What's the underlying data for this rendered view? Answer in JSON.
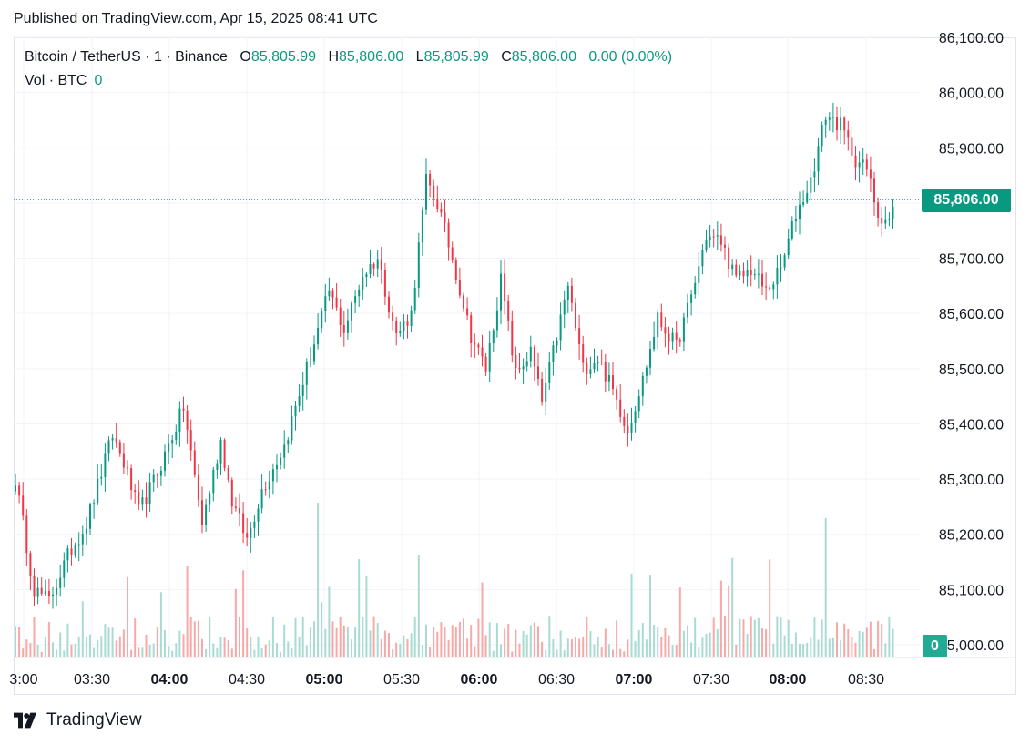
{
  "header": {
    "published": "Published on TradingView.com, Apr 15, 2025 08:41 UTC"
  },
  "legend": {
    "symbol": "Bitcoin / TetherUS · 1 · Binance",
    "o_label": "O",
    "o_value": "85,805.99",
    "h_label": "H",
    "h_value": "85,806.00",
    "l_label": "L",
    "l_value": "85,805.99",
    "c_label": "C",
    "c_value": "85,806.00",
    "change": "0.00 (0.00%)",
    "vol_label": "Vol · BTC",
    "vol_value": "0"
  },
  "price_tag": "85,806.00",
  "vol_tag": "0",
  "footer": {
    "brand": "TradingView"
  },
  "colors": {
    "up": "#089981",
    "down": "#f23645",
    "vol_up": "#a9dbd3",
    "vol_down": "#f7a9a7",
    "tag_up": "#089981"
  },
  "chart_data": {
    "type": "candlestick",
    "y_ticks": [
      "86,100.00",
      "86,000.00",
      "85,900.00",
      "85,800.00",
      "85,700.00",
      "85,600.00",
      "85,500.00",
      "85,400.00",
      "85,300.00",
      "85,200.00",
      "85,100.00",
      "85,000.00"
    ],
    "x_ticks": [
      {
        "label": "3:00",
        "bold": false
      },
      {
        "label": "03:30",
        "bold": false
      },
      {
        "label": "04:00",
        "bold": true
      },
      {
        "label": "04:30",
        "bold": false
      },
      {
        "label": "05:00",
        "bold": true
      },
      {
        "label": "05:30",
        "bold": false
      },
      {
        "label": "06:00",
        "bold": true
      },
      {
        "label": "06:30",
        "bold": false
      },
      {
        "label": "07:00",
        "bold": true
      },
      {
        "label": "07:30",
        "bold": false
      },
      {
        "label": "08:00",
        "bold": true
      },
      {
        "label": "08:30",
        "bold": false
      }
    ],
    "ylim": [
      85000,
      86100
    ],
    "last_price": 85806,
    "anchors": [
      {
        "i": 0,
        "p": 85300
      },
      {
        "i": 5,
        "p": 85100
      },
      {
        "i": 9,
        "p": 85080
      },
      {
        "i": 14,
        "p": 85160
      },
      {
        "i": 19,
        "p": 85220
      },
      {
        "i": 26,
        "p": 85380
      },
      {
        "i": 29,
        "p": 85330
      },
      {
        "i": 33,
        "p": 85240
      },
      {
        "i": 38,
        "p": 85310
      },
      {
        "i": 45,
        "p": 85430
      },
      {
        "i": 50,
        "p": 85220
      },
      {
        "i": 55,
        "p": 85370
      },
      {
        "i": 58,
        "p": 85260
      },
      {
        "i": 62,
        "p": 85190
      },
      {
        "i": 66,
        "p": 85280
      },
      {
        "i": 72,
        "p": 85360
      },
      {
        "i": 78,
        "p": 85500
      },
      {
        "i": 84,
        "p": 85640
      },
      {
        "i": 88,
        "p": 85570
      },
      {
        "i": 93,
        "p": 85670
      },
      {
        "i": 97,
        "p": 85700
      },
      {
        "i": 102,
        "p": 85560
      },
      {
        "i": 106,
        "p": 85600
      },
      {
        "i": 110,
        "p": 85840
      },
      {
        "i": 113,
        "p": 85800
      },
      {
        "i": 117,
        "p": 85700
      },
      {
        "i": 122,
        "p": 85560
      },
      {
        "i": 126,
        "p": 85500
      },
      {
        "i": 130,
        "p": 85660
      },
      {
        "i": 134,
        "p": 85490
      },
      {
        "i": 138,
        "p": 85530
      },
      {
        "i": 141,
        "p": 85440
      },
      {
        "i": 145,
        "p": 85560
      },
      {
        "i": 148,
        "p": 85650
      },
      {
        "i": 152,
        "p": 85500
      },
      {
        "i": 156,
        "p": 85520
      },
      {
        "i": 160,
        "p": 85460
      },
      {
        "i": 164,
        "p": 85390
      },
      {
        "i": 168,
        "p": 85480
      },
      {
        "i": 172,
        "p": 85590
      },
      {
        "i": 177,
        "p": 85540
      },
      {
        "i": 181,
        "p": 85630
      },
      {
        "i": 185,
        "p": 85740
      },
      {
        "i": 189,
        "p": 85730
      },
      {
        "i": 193,
        "p": 85660
      },
      {
        "i": 197,
        "p": 85680
      },
      {
        "i": 201,
        "p": 85640
      },
      {
        "i": 205,
        "p": 85680
      },
      {
        "i": 209,
        "p": 85780
      },
      {
        "i": 213,
        "p": 85840
      },
      {
        "i": 217,
        "p": 85960
      },
      {
        "i": 221,
        "p": 85940
      },
      {
        "i": 225,
        "p": 85880
      },
      {
        "i": 228,
        "p": 85860
      },
      {
        "i": 231,
        "p": 85780
      },
      {
        "i": 234,
        "p": 85770
      },
      {
        "i": 236,
        "p": 85806
      }
    ],
    "candle_count": 237
  }
}
